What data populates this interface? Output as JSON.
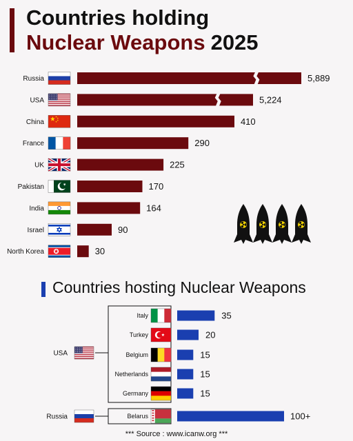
{
  "title": {
    "line1": "Countries holding",
    "line2": "Nuclear Weapons",
    "year": "2025"
  },
  "subtitle": "Countries hosting Nuclear Weapons",
  "source": "*** Source : www.icanw.org ***",
  "colors": {
    "holding_bar": "#6b0a0e",
    "hosting_bar": "#1a3fb0"
  },
  "chart_data": [
    {
      "type": "bar",
      "orientation": "horizontal",
      "title": "Countries holding Nuclear Weapons 2025",
      "categories": [
        "Russia",
        "USA",
        "China",
        "France",
        "UK",
        "Pakistan",
        "India",
        "Israel",
        "North Korea"
      ],
      "values": [
        5889,
        5224,
        410,
        290,
        225,
        170,
        164,
        90,
        30
      ],
      "value_labels": [
        "5,889",
        "5,224",
        "410",
        "290",
        "225",
        "170",
        "164",
        "90",
        "30"
      ],
      "axis_break": {
        "applies_to": [
          "Russia",
          "USA"
        ]
      },
      "icons": [
        "russia-flag",
        "usa-flag",
        "china-flag",
        "france-flag",
        "uk-flag",
        "pakistan-flag",
        "india-flag",
        "israel-flag",
        "north-korea-flag"
      ]
    },
    {
      "type": "bar",
      "orientation": "horizontal",
      "title": "Countries hosting Nuclear Weapons",
      "groups": [
        {
          "owner": "USA",
          "hosts": [
            "Italy",
            "Turkey",
            "Belgium",
            "Netherlands",
            "Germany"
          ],
          "values": [
            35,
            20,
            15,
            15,
            15
          ],
          "value_labels": [
            "35",
            "20",
            "15",
            "15",
            "15"
          ]
        },
        {
          "owner": "Russia",
          "hosts": [
            "Belarus"
          ],
          "values": [
            100
          ],
          "value_labels": [
            "100+"
          ]
        }
      ],
      "icons": [
        "italy-flag",
        "turkey-flag",
        "belgium-flag",
        "netherlands-flag",
        "germany-flag",
        "belarus-flag"
      ]
    }
  ]
}
